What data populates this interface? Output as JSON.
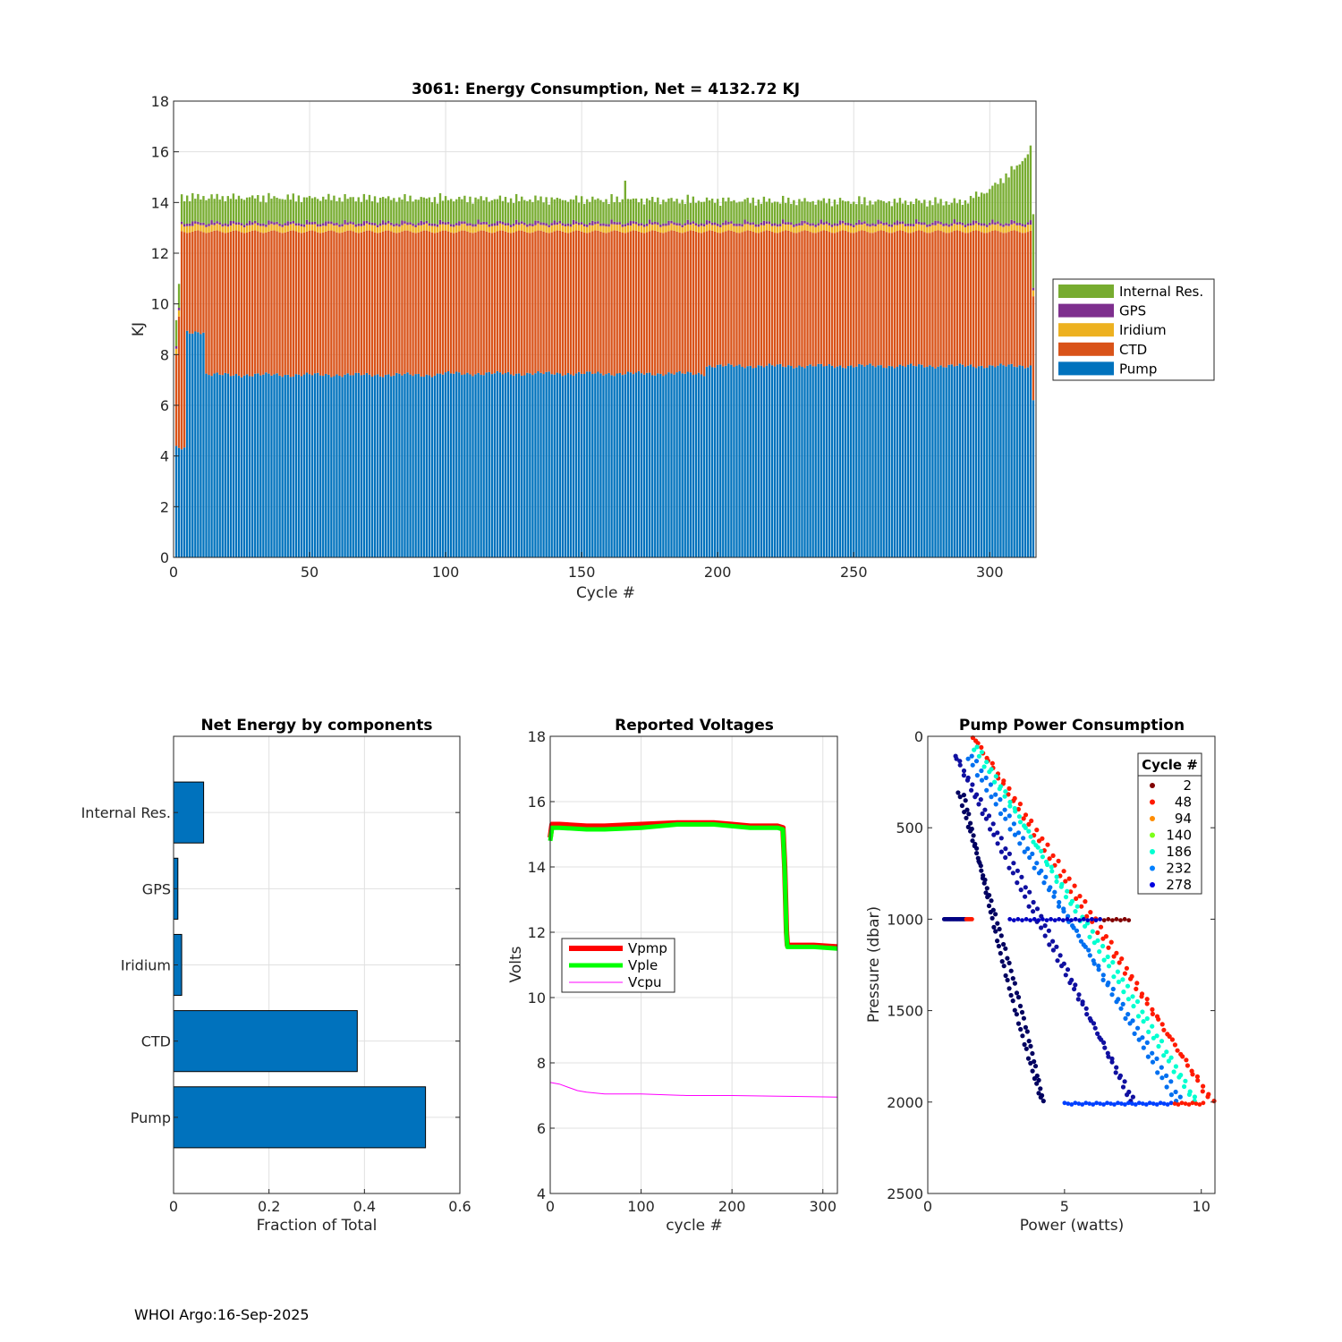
{
  "footer": "WHOI Argo:16-Sep-2025",
  "chart_data": [
    {
      "id": "energy",
      "type": "bar",
      "stacked": true,
      "title": "3061: Energy Consumption,  Net = 4132.72 KJ",
      "xlabel": "Cycle #",
      "ylabel": "KJ",
      "xlim": [
        0,
        317
      ],
      "ylim": [
        0,
        18
      ],
      "xticks": [
        0,
        50,
        100,
        150,
        200,
        250,
        300
      ],
      "yticks": [
        0,
        2,
        4,
        6,
        8,
        10,
        12,
        14,
        16,
        18
      ],
      "grid": true,
      "legend_position": "outside-right",
      "series": [
        {
          "name": "Pump",
          "color": "#0072BD"
        },
        {
          "name": "CTD",
          "color": "#D95319"
        },
        {
          "name": "Iridium",
          "color": "#EDB120"
        },
        {
          "name": "GPS",
          "color": "#7E2F8E"
        },
        {
          "name": "Internal Res.",
          "color": "#77AC30"
        }
      ],
      "legend_order": [
        "Internal Res.",
        "GPS",
        "Iridium",
        "CTD",
        "Pump"
      ],
      "profile": {
        "n_cycles": 316,
        "pump_segments": [
          [
            1,
            4,
            4.3
          ],
          [
            5,
            11,
            8.9
          ],
          [
            12,
            97,
            7.2
          ],
          [
            98,
            195,
            7.25
          ],
          [
            196,
            316,
            7.55
          ]
        ],
        "ctd_top_typical": 12.85,
        "iridium_kj": 0.25,
        "gps_kj": 0.1,
        "internal_res_kj": [
          [
            1,
            1.0
          ],
          [
            150,
            0.9
          ],
          [
            290,
            0.8
          ],
          [
            300,
            1.3
          ],
          [
            310,
            2.2
          ],
          [
            316,
            3.0
          ]
        ],
        "total_kj_range": [
          13.5,
          17.0
        ]
      }
    },
    {
      "id": "components",
      "type": "barh",
      "title": "Net Energy by components",
      "xlabel": "Fraction of Total",
      "ylabel": "",
      "xlim": [
        0,
        0.6
      ],
      "xticks": [
        0,
        0.2,
        0.4,
        0.6
      ],
      "tick_labels": [
        "0",
        "0.2",
        "0.4",
        "0.6"
      ],
      "categories": [
        "Internal Res.",
        "GPS",
        "Iridium",
        "CTD",
        "Pump"
      ],
      "values": [
        0.063,
        0.009,
        0.017,
        0.385,
        0.528
      ],
      "color": "#0072BD",
      "grid": true
    },
    {
      "id": "voltages",
      "type": "line",
      "title": "Reported Voltages",
      "xlabel": "cycle #",
      "ylabel": "Volts",
      "xlim": [
        0,
        316
      ],
      "ylim": [
        4,
        18
      ],
      "xticks": [
        0,
        100,
        200,
        300
      ],
      "yticks": [
        4,
        6,
        8,
        10,
        12,
        14,
        16,
        18
      ],
      "grid": true,
      "legend_position": "middle-left",
      "series": [
        {
          "name": "Vpmp",
          "color": "#FF0000",
          "x": [
            0,
            2,
            10,
            40,
            60,
            100,
            140,
            180,
            200,
            220,
            250,
            256,
            258,
            260,
            261,
            290,
            316
          ],
          "y": [
            14.9,
            15.3,
            15.3,
            15.25,
            15.25,
            15.3,
            15.35,
            15.35,
            15.3,
            15.25,
            15.25,
            15.2,
            14.0,
            12.0,
            11.6,
            11.6,
            11.55
          ]
        },
        {
          "name": "Vple",
          "color": "#00FF00",
          "x": [
            0,
            2,
            10,
            40,
            60,
            100,
            140,
            180,
            200,
            220,
            250,
            256,
            258,
            260,
            261,
            290,
            316
          ],
          "y": [
            14.8,
            15.2,
            15.2,
            15.15,
            15.15,
            15.2,
            15.3,
            15.3,
            15.25,
            15.2,
            15.2,
            15.15,
            13.9,
            11.9,
            11.55,
            11.55,
            11.5
          ]
        },
        {
          "name": "Vcpu",
          "color": "#FF00FF",
          "x": [
            0,
            10,
            20,
            30,
            40,
            60,
            100,
            150,
            200,
            250,
            300,
            316
          ],
          "y": [
            7.4,
            7.35,
            7.25,
            7.15,
            7.1,
            7.05,
            7.05,
            7.0,
            7.0,
            6.98,
            6.96,
            6.95
          ]
        }
      ]
    },
    {
      "id": "pump",
      "type": "scatter",
      "title": "Pump Power Consumption",
      "xlabel": "Power (watts)",
      "ylabel": "Pressure (dbar)",
      "xlim": [
        0,
        10.5
      ],
      "ylim": [
        2500,
        0
      ],
      "xticks": [
        0,
        5,
        10
      ],
      "yticks": [
        0,
        500,
        1000,
        1500,
        2000,
        2500
      ],
      "grid": false,
      "legend_title": "Cycle #",
      "legend_position": "top-right",
      "series": [
        {
          "name": "2",
          "color": "#800000"
        },
        {
          "name": "48",
          "color": "#FF1A00"
        },
        {
          "name": "94",
          "color": "#FF8C00"
        },
        {
          "name": "140",
          "color": "#7CFF1A"
        },
        {
          "name": "186",
          "color": "#00FFD0"
        },
        {
          "name": "232",
          "color": "#0080FF"
        },
        {
          "name": "278",
          "color": "#0000E0"
        }
      ],
      "envelopes": [
        {
          "color": "#FF1A00",
          "p0": [
            1.65,
            0
          ],
          "p1": [
            10.4,
            2000
          ]
        },
        {
          "color": "#00FFD0",
          "p0": [
            1.7,
            50
          ],
          "p1": [
            9.8,
            2000
          ]
        },
        {
          "color": "#0070F0",
          "p0": [
            1.5,
            100
          ],
          "p1": [
            9.2,
            2000
          ]
        },
        {
          "color": "#1010A0",
          "p0": [
            1.0,
            100
          ],
          "p1": [
            7.5,
            2000
          ]
        },
        {
          "color": "#000060",
          "p0": [
            1.2,
            300
          ],
          "p1": [
            4.2,
            2000
          ]
        }
      ]
    }
  ]
}
